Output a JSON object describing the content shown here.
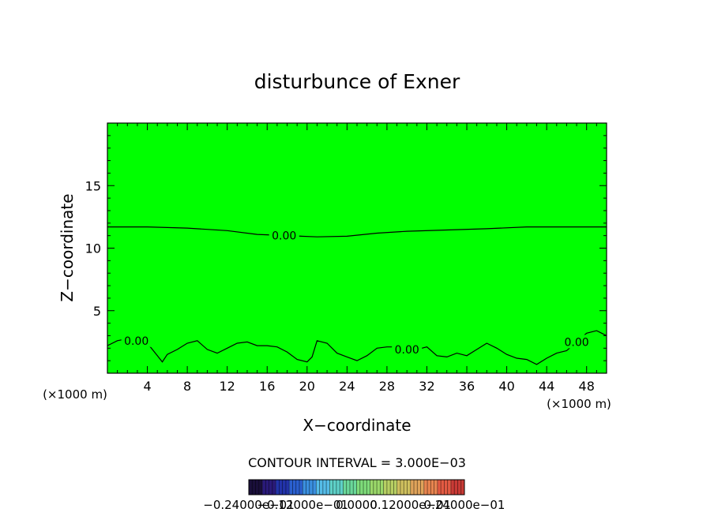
{
  "chart_data": {
    "type": "heatmap",
    "title": "disturbunce of Exner",
    "xlabel": "X−coordinate",
    "ylabel": "Z−coordinate",
    "x_unit": "(×1000 m)",
    "x_unit_right": "(×1000 m)",
    "xlim": [
      0,
      50
    ],
    "ylim": [
      0,
      20
    ],
    "xticks": [
      4,
      8,
      12,
      16,
      20,
      24,
      28,
      32,
      36,
      40,
      44,
      48
    ],
    "yticks": [
      5,
      10,
      15
    ],
    "fill_color": "#00ff00",
    "contour_interval_text": "CONTOUR INTERVAL = 3.000E−03",
    "contour_labels": [
      {
        "x": 17.7,
        "y": 11.0,
        "text": "0.00"
      },
      {
        "x": 2.9,
        "y": 2.6,
        "text": "0.00"
      },
      {
        "x": 30.0,
        "y": 1.9,
        "text": "0.00"
      },
      {
        "x": 47.0,
        "y": 2.5,
        "text": "0.00"
      }
    ],
    "contour_upper": [
      [
        0,
        11.7
      ],
      [
        4,
        11.7
      ],
      [
        8,
        11.6
      ],
      [
        12,
        11.4
      ],
      [
        15,
        11.1
      ],
      [
        18,
        11.0
      ],
      [
        21,
        10.9
      ],
      [
        24,
        10.95
      ],
      [
        27,
        11.2
      ],
      [
        30,
        11.35
      ],
      [
        34,
        11.45
      ],
      [
        38,
        11.55
      ],
      [
        42,
        11.7
      ],
      [
        46,
        11.7
      ],
      [
        50,
        11.7
      ]
    ],
    "contour_lower": [
      [
        0,
        2.2
      ],
      [
        1,
        2.6
      ],
      [
        2.3,
        2.8
      ],
      [
        4.3,
        2.1
      ],
      [
        5.0,
        1.4
      ],
      [
        5.5,
        0.9
      ],
      [
        6,
        1.5
      ],
      [
        7,
        1.9
      ],
      [
        8,
        2.4
      ],
      [
        9,
        2.6
      ],
      [
        10,
        1.9
      ],
      [
        11,
        1.6
      ],
      [
        12,
        2.0
      ],
      [
        13,
        2.4
      ],
      [
        14,
        2.5
      ],
      [
        15,
        2.2
      ],
      [
        16,
        2.2
      ],
      [
        17,
        2.1
      ],
      [
        18,
        1.7
      ],
      [
        19,
        1.1
      ],
      [
        20,
        0.9
      ],
      [
        20.5,
        1.3
      ],
      [
        21,
        2.6
      ],
      [
        22,
        2.4
      ],
      [
        23,
        1.6
      ],
      [
        24,
        1.3
      ],
      [
        25,
        1.0
      ],
      [
        26,
        1.4
      ],
      [
        27,
        2.0
      ],
      [
        28,
        2.1
      ],
      [
        29,
        2.1
      ],
      [
        30,
        1.7
      ],
      [
        31,
        1.9
      ],
      [
        32,
        2.1
      ],
      [
        33,
        1.4
      ],
      [
        34,
        1.3
      ],
      [
        35,
        1.6
      ],
      [
        36,
        1.4
      ],
      [
        37,
        1.9
      ],
      [
        38,
        2.4
      ],
      [
        39,
        2.0
      ],
      [
        40,
        1.5
      ],
      [
        41,
        1.2
      ],
      [
        42,
        1.1
      ],
      [
        43,
        0.7
      ],
      [
        44,
        1.2
      ],
      [
        45,
        1.6
      ],
      [
        46,
        1.8
      ],
      [
        47,
        2.5
      ],
      [
        48,
        3.2
      ],
      [
        49,
        3.4
      ],
      [
        50,
        3.0
      ]
    ],
    "colorbar": {
      "labels": [
        "−0.24000e−01",
        "−0.12000e−01",
        "0.0000",
        "0.12000e−01",
        "0.24000e−01"
      ],
      "colors": [
        "#1a0f3a",
        "#2a1a7a",
        "#2233aa",
        "#2a5fcf",
        "#3a8fe0",
        "#55bce8",
        "#5ed1c8",
        "#6ad89a",
        "#7edc7a",
        "#9bd86a",
        "#b7cf63",
        "#cfc05e",
        "#e0a35a",
        "#e8844f",
        "#e35a42",
        "#c93a35"
      ]
    }
  }
}
